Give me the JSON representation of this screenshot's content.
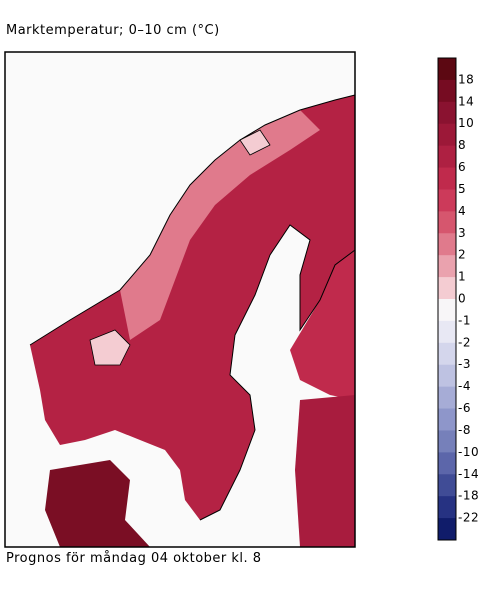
{
  "title": "Marktemperatur; 0–10 cm (°C)",
  "caption": "Prognos för måndag 04 oktober kl. 8",
  "legend": {
    "levels": [
      18,
      14,
      10,
      8,
      6,
      5,
      4,
      3,
      2,
      1,
      0,
      -1,
      -2,
      -3,
      -4,
      -6,
      -8,
      -10,
      -14,
      -18,
      -22
    ],
    "colors": [
      "#5c0812",
      "#760c22",
      "#8a1230",
      "#9c1838",
      "#ae2042",
      "#c02a4c",
      "#cc3a5a",
      "#d6566e",
      "#e07a8c",
      "#eaa2ae",
      "#f4ccd2",
      "#f8f6f8",
      "#e8e8f4",
      "#d4d6ec",
      "#bec2e2",
      "#a6acd6",
      "#8e96ca",
      "#7680ba",
      "#5c66aa",
      "#404c96",
      "#263282",
      "#101c6a"
    ]
  }
}
